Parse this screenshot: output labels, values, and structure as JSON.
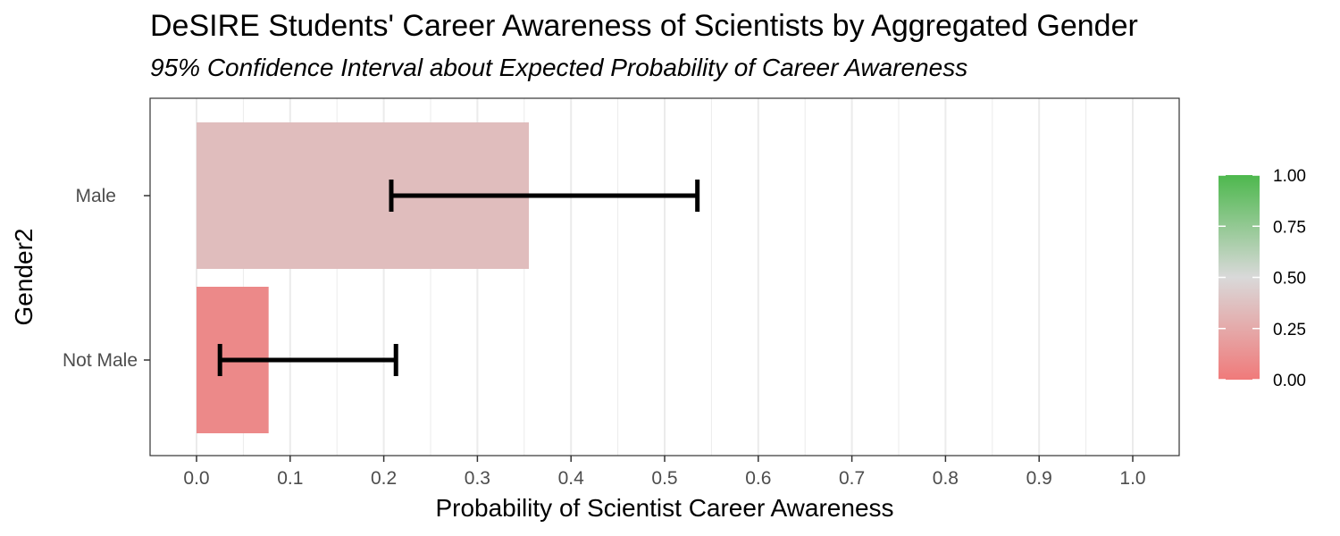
{
  "chart_data": {
    "type": "bar",
    "orientation": "horizontal",
    "title": "DeSIRE Students' Career Awareness of Scientists by Aggregated Gender",
    "subtitle": "95% Confidence Interval about Expected Probability of Career Awareness",
    "xlabel": "Probability of Scientist Career Awareness",
    "ylabel": "Gender2",
    "xlim": [
      0,
      1
    ],
    "x_ticks": [
      "0.0",
      "0.1",
      "0.2",
      "0.3",
      "0.4",
      "0.5",
      "0.6",
      "0.7",
      "0.8",
      "0.9",
      "1.0"
    ],
    "categories": [
      "Male",
      "Not Male"
    ],
    "values": [
      0.355,
      0.077
    ],
    "error_bars": [
      {
        "lower": 0.208,
        "upper": 0.535
      },
      {
        "lower": 0.025,
        "upper": 0.213
      }
    ],
    "grid": "vertical",
    "fill_scale": {
      "low_color": "#f07a7a",
      "mid_color": "#d9d9d9",
      "high_color": "#4db84d",
      "ticks": [
        "1.00",
        "0.75",
        "0.50",
        "0.25",
        "0.00"
      ],
      "tick_values": [
        1.0,
        0.75,
        0.5,
        0.25,
        0.0
      ],
      "placement": "right"
    }
  }
}
